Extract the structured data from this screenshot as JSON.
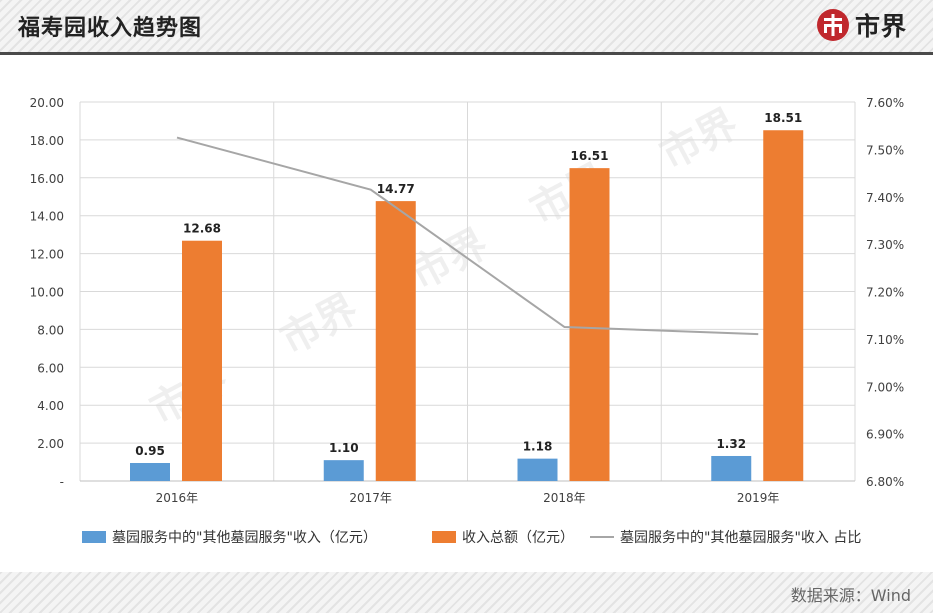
{
  "header": {
    "title": "福寿园收入趋势图",
    "logo_text": "市界"
  },
  "footer": {
    "source": "数据来源：Wind"
  },
  "watermark": "市界",
  "colors": {
    "bar_other": "#5b9bd5",
    "bar_total": "#ed7d31",
    "line_share": "#a6a6a6"
  },
  "chart_data": {
    "type": "bar",
    "categories": [
      "2016年",
      "2017年",
      "2018年",
      "2019年"
    ],
    "series": [
      {
        "name": "墓园服务中的\"其他墓园服务\"收入（亿元）",
        "type": "bar",
        "axis": "left",
        "color": "#5b9bd5",
        "values": [
          0.95,
          1.1,
          1.18,
          1.32
        ],
        "labels": [
          "0.95",
          "1.10",
          "1.18",
          "1.32"
        ]
      },
      {
        "name": "收入总额（亿元）",
        "type": "bar",
        "axis": "left",
        "color": "#ed7d31",
        "values": [
          12.68,
          14.77,
          16.51,
          18.51
        ],
        "labels": [
          "12.68",
          "14.77",
          "16.51",
          "18.51"
        ]
      },
      {
        "name": "墓园服务中的\"其他墓园服务\"收入 占比",
        "type": "line",
        "axis": "right",
        "color": "#a6a6a6",
        "values": [
          7.525,
          7.415,
          7.125,
          7.11
        ]
      }
    ],
    "y_left": {
      "min": 0,
      "max": 20,
      "ticks": [
        "-",
        "2.00",
        "4.00",
        "6.00",
        "8.00",
        "10.00",
        "12.00",
        "14.00",
        "16.00",
        "18.00",
        "20.00"
      ]
    },
    "y_right": {
      "min": 6.8,
      "max": 7.6,
      "ticks": [
        "6.80%",
        "6.90%",
        "7.00%",
        "7.10%",
        "7.20%",
        "7.30%",
        "7.40%",
        "7.50%",
        "7.60%"
      ]
    },
    "grid": true,
    "legend_position": "bottom"
  }
}
